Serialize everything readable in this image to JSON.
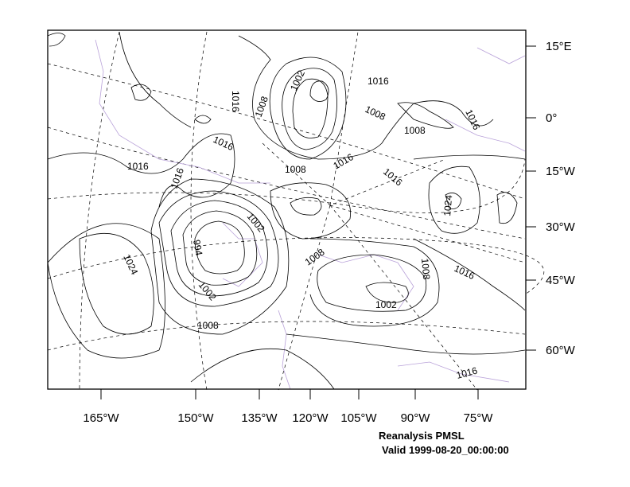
{
  "title": {
    "line1": "Reanalysis PMSL",
    "line2": "Valid 1999-08-20_00:00:00"
  },
  "x_axis_labels": [
    "165°W",
    "150°W",
    "135°W",
    "120°W",
    "105°W",
    "90°W",
    "75°W"
  ],
  "y_axis_labels": [
    "15°E",
    "0°",
    "15°W",
    "30°W",
    "45°W",
    "60°W"
  ],
  "contour_labels": [
    "1016",
    "1002",
    "1016",
    "1008",
    "1008",
    "1016",
    "1016",
    "1016",
    "1008",
    "1016",
    "1016",
    "1008",
    "1002",
    "1016",
    "1024",
    "994",
    "1024",
    "1002",
    "1008",
    "1008",
    "1008",
    "1016",
    "1002",
    "1016"
  ],
  "colors": {
    "contour": "#000000",
    "coastline": "#b9a2d9"
  }
}
